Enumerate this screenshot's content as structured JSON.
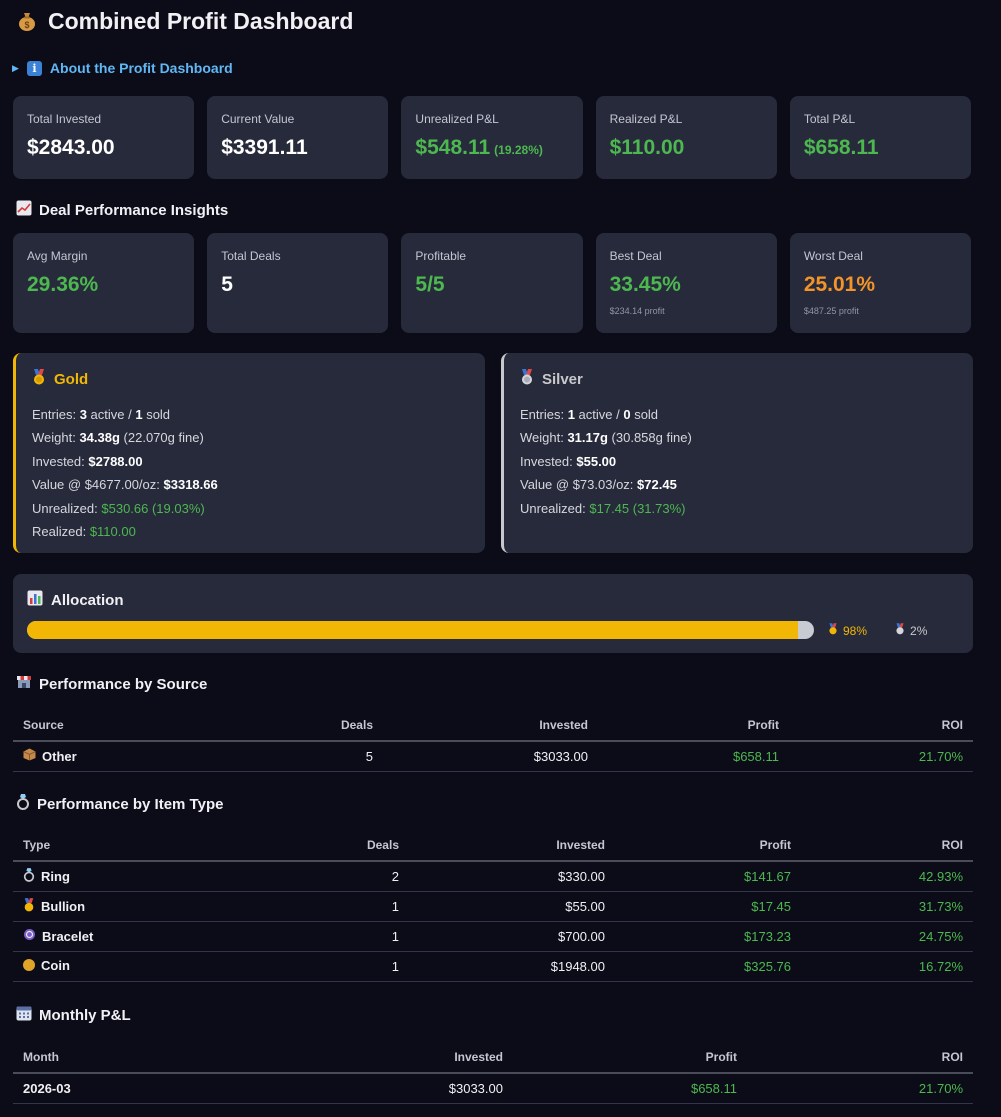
{
  "title": "Combined Profit Dashboard",
  "about_label": "About the Profit Dashboard",
  "summary_cards": [
    {
      "label": "Total Invested",
      "value": "$2843.00",
      "color": "white",
      "pct": ""
    },
    {
      "label": "Current Value",
      "value": "$3391.11",
      "color": "white",
      "pct": ""
    },
    {
      "label": "Unrealized P&L",
      "value": "$548.11",
      "color": "green",
      "pct": "(19.28%)"
    },
    {
      "label": "Realized P&L",
      "value": "$110.00",
      "color": "green",
      "pct": ""
    },
    {
      "label": "Total P&L",
      "value": "$658.11",
      "color": "green",
      "pct": ""
    }
  ],
  "insights_title": "Deal Performance Insights",
  "insight_cards": [
    {
      "label": "Avg Margin",
      "value": "29.36%",
      "color": "green",
      "sub": ""
    },
    {
      "label": "Total Deals",
      "value": "5",
      "color": "white",
      "sub": ""
    },
    {
      "label": "Profitable",
      "value": "5/5",
      "color": "green",
      "sub": ""
    },
    {
      "label": "Best Deal",
      "value": "33.45%",
      "color": "green",
      "sub": "$234.14 profit"
    },
    {
      "label": "Worst Deal",
      "value": "25.01%",
      "color": "orange",
      "sub": "$487.25 profit"
    }
  ],
  "gold": {
    "name": "Gold",
    "entries_prefix": "Entries: ",
    "active": "3",
    "active_word": " active / ",
    "sold": "1",
    "sold_word": " sold",
    "weight_prefix": "Weight: ",
    "weight": "34.38g",
    "weight_fine": " (22.070g fine)",
    "invested_prefix": "Invested: ",
    "invested": "$2788.00",
    "value_prefix": "Value @ $4677.00/oz: ",
    "value": "$3318.66",
    "unrealized_prefix": "Unrealized: ",
    "unrealized": "$530.66 (19.03%)",
    "realized_prefix": "Realized: ",
    "realized": "$110.00"
  },
  "silver": {
    "name": "Silver",
    "entries_prefix": "Entries: ",
    "active": "1",
    "active_word": " active / ",
    "sold": "0",
    "sold_word": " sold",
    "weight_prefix": "Weight: ",
    "weight": "31.17g",
    "weight_fine": " (30.858g fine)",
    "invested_prefix": "Invested: ",
    "invested": "$55.00",
    "value_prefix": "Value @ $73.03/oz: ",
    "value": "$72.45",
    "unrealized_prefix": "Unrealized: ",
    "unrealized": "$17.45 (31.73%)"
  },
  "allocation": {
    "title": "Allocation",
    "gold_pct_value": 98,
    "gold_pct": "98%",
    "silver_pct": "2%"
  },
  "by_source": {
    "title": "Performance by Source",
    "headers": [
      "Source",
      "Deals",
      "Invested",
      "Profit",
      "ROI"
    ],
    "rows": [
      {
        "name": "Other",
        "deals": "5",
        "invested": "$3033.00",
        "profit": "$658.11",
        "roi": "21.70%"
      }
    ]
  },
  "by_type": {
    "title": "Performance by Item Type",
    "headers": [
      "Type",
      "Deals",
      "Invested",
      "Profit",
      "ROI"
    ],
    "rows": [
      {
        "name": "Ring",
        "icon": "ring-icon",
        "deals": "2",
        "invested": "$330.00",
        "profit": "$141.67",
        "roi": "42.93%"
      },
      {
        "name": "Bullion",
        "icon": "medal-icon",
        "deals": "1",
        "invested": "$55.00",
        "profit": "$17.45",
        "roi": "31.73%"
      },
      {
        "name": "Bracelet",
        "icon": "bracelet-icon",
        "deals": "1",
        "invested": "$700.00",
        "profit": "$173.23",
        "roi": "24.75%"
      },
      {
        "name": "Coin",
        "icon": "coin-icon",
        "deals": "1",
        "invested": "$1948.00",
        "profit": "$325.76",
        "roi": "16.72%"
      }
    ]
  },
  "monthly": {
    "title": "Monthly P&L",
    "headers": [
      "Month",
      "Invested",
      "Profit",
      "ROI"
    ],
    "rows": [
      {
        "month": "2026-03",
        "invested": "$3033.00",
        "profit": "$658.11",
        "roi": "21.70%"
      }
    ]
  },
  "colors": {
    "background": "#0c0c18",
    "card": "#272a3b",
    "green": "#4cb84f",
    "gold": "#f2b705",
    "silver": "#c8c8cc",
    "orange": "#f29429",
    "link": "#5fb8f5"
  }
}
